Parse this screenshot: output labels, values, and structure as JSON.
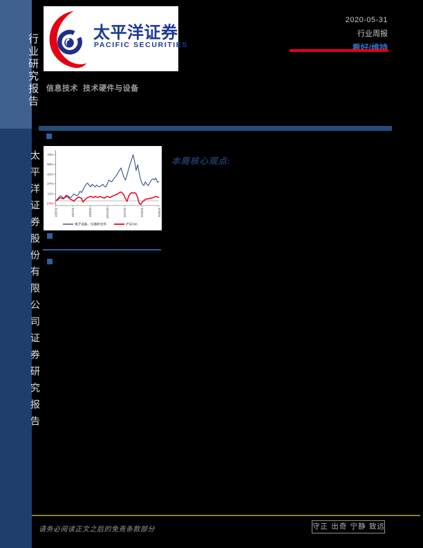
{
  "page": {
    "date": "2020-05-31",
    "report_type": "行业周报",
    "rating": "看好/维持",
    "category": "信息技术  技术硬件与设备",
    "core_view_title": "本周核心观点:"
  },
  "sidebar": {
    "top_label": "行业研究报告",
    "bottom_label": "太平洋证券股份有限公司证券研究报告"
  },
  "logo": {
    "cn_name": "太平洋证券",
    "en_name": "PACIFIC SECURITIES"
  },
  "footer": {
    "disclaimer": "请务必阅读正文之后的免责条款部分",
    "motto": "守正 出奇 宁静 致远"
  },
  "colors": {
    "brand_red": "#e60012",
    "brand_blue": "#1c3a94",
    "rating_blue": "#2d73c8",
    "bar_blue": "#234e7c",
    "bullet_blue": "#2f5e9e",
    "sidebar_top": "#40618f",
    "sidebar_bottom": "#1f3e6c",
    "core_title": "#1e3866",
    "gold": "#8d7b36"
  },
  "chart_data": {
    "type": "line",
    "title": "",
    "xlabel": "",
    "ylabel": "",
    "x_tick_labels": [
      "19/5/31",
      "19/7/31",
      "19/9/30",
      "19/11/30",
      "20/1/31",
      "20/3/31",
      "20/5/31"
    ],
    "y_ticks": {
      "labels": [
        "(4%)",
        "11%",
        "27%",
        "42%",
        "58%",
        "73%"
      ],
      "values": [
        -4,
        11,
        27,
        42,
        58,
        73
      ]
    },
    "ylim": [
      -7.5,
      78
    ],
    "zero_line": 0,
    "grid": false,
    "legend_position": "bottom",
    "series": [
      {
        "name": "电子设备、仪器和元件",
        "color": "#23427b",
        "width": 1.0,
        "values": [
          0,
          2,
          5,
          8,
          7,
          4,
          6,
          9,
          8,
          6,
          5,
          8,
          11,
          9,
          8,
          10,
          15,
          13,
          17,
          22,
          26,
          28,
          25,
          22,
          26,
          24,
          22,
          25,
          23,
          22,
          24,
          26,
          23,
          22,
          27,
          33,
          31,
          30,
          34,
          37,
          40,
          44,
          48,
          52,
          44,
          37,
          33,
          41,
          50,
          58,
          65,
          73,
          62,
          48,
          57,
          44,
          33,
          27,
          24,
          30,
          26,
          24,
          29,
          33,
          35,
          33,
          36,
          29,
          31
        ]
      },
      {
        "name": "沪深300",
        "color": "#e8001c",
        "width": 1.5,
        "values": [
          0,
          1,
          3,
          5,
          4,
          3,
          5,
          7,
          6,
          4,
          2,
          1,
          -1,
          2,
          4,
          6,
          5,
          4,
          -2,
          1,
          3,
          5,
          6,
          7,
          6,
          5,
          7,
          6,
          5,
          7,
          6,
          5,
          4,
          6,
          7,
          6,
          5,
          7,
          8,
          9,
          10,
          11,
          13,
          14,
          12,
          9,
          3,
          -1,
          7,
          11,
          13,
          12,
          13,
          11,
          5,
          -4,
          -6,
          -2,
          0,
          2,
          3,
          3,
          4,
          4,
          5,
          6,
          7,
          6,
          5
        ]
      }
    ]
  }
}
